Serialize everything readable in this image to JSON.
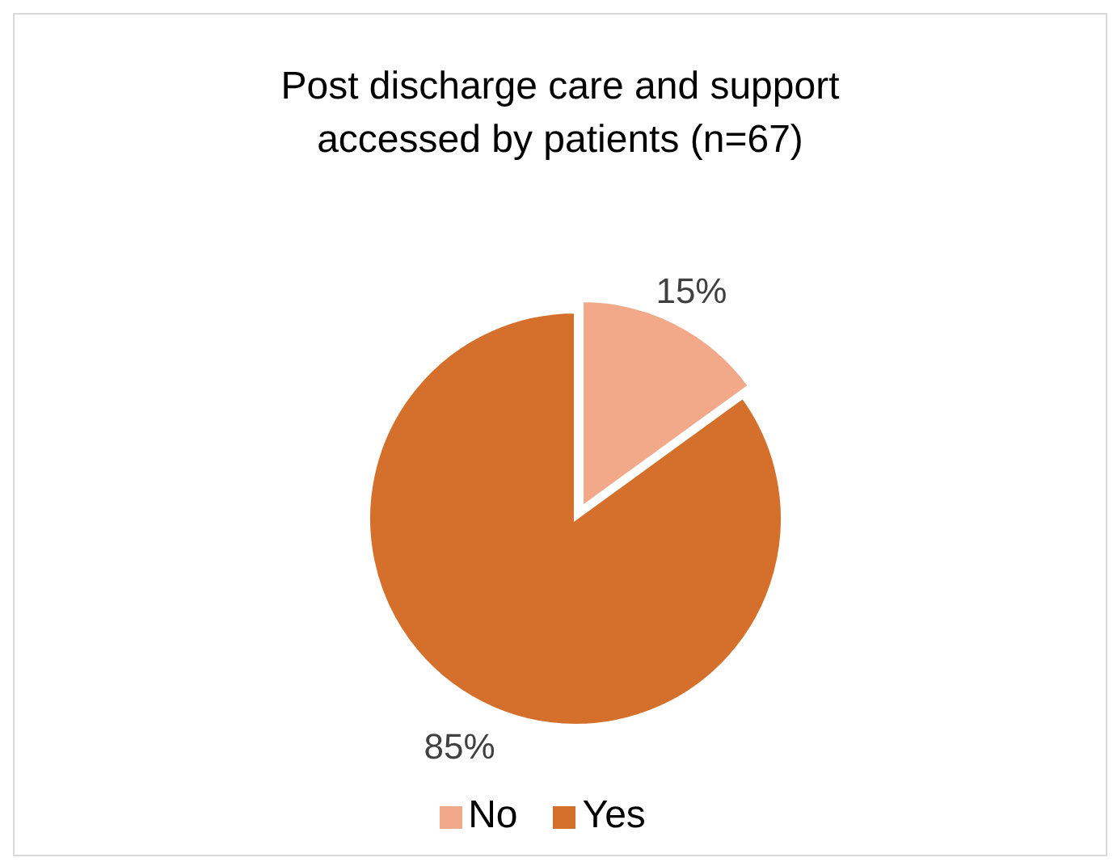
{
  "chart_data": {
    "type": "pie",
    "title": "Post discharge care and support\naccessed by patients (n=67)",
    "categories": [
      "No",
      "Yes"
    ],
    "values": [
      15,
      85
    ],
    "value_labels": [
      "15%",
      "85%"
    ],
    "colors": [
      "#f2a98a",
      "#d4702b"
    ],
    "legend": "bottom"
  }
}
